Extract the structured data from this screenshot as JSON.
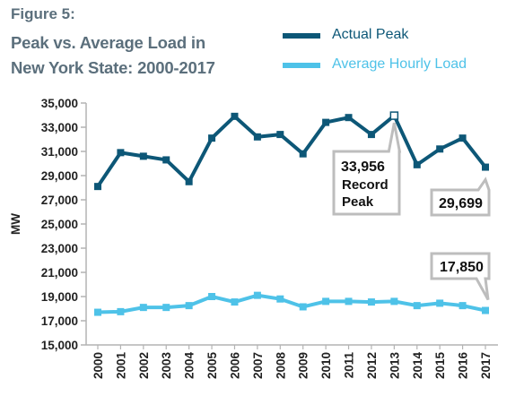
{
  "figure_label": "Figure 5:",
  "title_lines": [
    "Peak vs. Average Load in",
    "New York State: 2000-2017"
  ],
  "colors": {
    "actual": "#0d5777",
    "average": "#4ec2e8",
    "title": "#5b6f7c",
    "axis": "#b3b3b3",
    "callout_border": "#bdbdbd"
  },
  "legend": [
    {
      "label": "Actual Peak"
    },
    {
      "label": "Average Hourly Load"
    }
  ],
  "chart_data": {
    "type": "line",
    "ylabel": "MW",
    "xlabel": "",
    "ylim": [
      15000,
      35000
    ],
    "yticks": [
      15000,
      17000,
      19000,
      21000,
      23000,
      25000,
      27000,
      29000,
      31000,
      33000,
      35000
    ],
    "ytick_labels": [
      "15,000",
      "17,000",
      "19,000",
      "21,000",
      "23,000",
      "25,000",
      "27,000",
      "29,000",
      "31,000",
      "33,000",
      "35,000"
    ],
    "categories": [
      "2000",
      "2001",
      "2002",
      "2003",
      "2004",
      "2005",
      "2006",
      "2007",
      "2008",
      "2009",
      "2010",
      "2011",
      "2012",
      "2013",
      "2014",
      "2015",
      "2016",
      "2017"
    ],
    "series": [
      {
        "name": "Actual Peak",
        "values": [
          28100,
          30900,
          30600,
          30300,
          28500,
          32100,
          33900,
          32200,
          32400,
          30800,
          33400,
          33800,
          32400,
          33956,
          29900,
          31200,
          32100,
          29699
        ]
      },
      {
        "name": "Average Hourly Load",
        "values": [
          17700,
          17750,
          18100,
          18100,
          18250,
          19000,
          18550,
          19100,
          18800,
          18150,
          18600,
          18600,
          18550,
          18600,
          18250,
          18450,
          18250,
          17850
        ]
      }
    ],
    "annotations": [
      {
        "text": "33,956",
        "subtext": [
          "Record",
          "Peak"
        ]
      },
      {
        "text": "29,699"
      },
      {
        "text": "17,850"
      }
    ],
    "grid": false
  }
}
